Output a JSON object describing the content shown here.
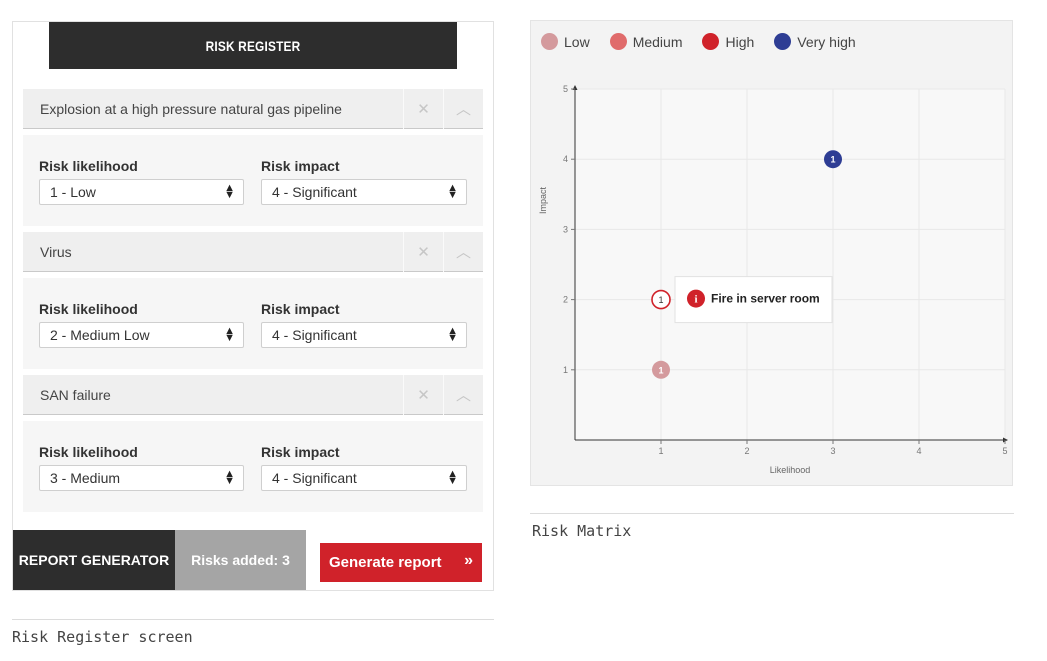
{
  "register": {
    "title": "RISK REGISTER",
    "likelihood_label": "Risk likelihood",
    "impact_label": "Risk impact",
    "risks": [
      {
        "title": "Explosion at a high pressure natural gas pipeline",
        "likelihood": "1 - Low",
        "impact": "4 - Significant"
      },
      {
        "title": "Virus",
        "likelihood": "2 - Medium Low",
        "impact": "4 - Significant"
      },
      {
        "title": "SAN failure",
        "likelihood": "3 - Medium",
        "impact": "4 - Significant"
      }
    ],
    "remove_icon": "close-icon",
    "collapse_icon": "chevron-up-icon"
  },
  "generator": {
    "label": "REPORT GENERATOR",
    "count": "Risks added: 3",
    "button": "Generate report",
    "button_icon": "double-chevron-right-icon"
  },
  "captions": {
    "register": "Risk Register screen",
    "matrix": "Risk Matrix"
  },
  "colors": {
    "dark": "#2d2d2d",
    "accent_red": "#d0222a",
    "low": "#d49a9d",
    "medium": "#e06b6b",
    "high": "#d0222a",
    "very_high": "#2e3d94"
  },
  "legend": [
    {
      "label": "Low",
      "color": "#d49a9d"
    },
    {
      "label": "Medium",
      "color": "#e06b6b"
    },
    {
      "label": "High",
      "color": "#d0222a"
    },
    {
      "label": "Very high",
      "color": "#2e3d94"
    }
  ],
  "chart_data": {
    "type": "scatter",
    "xlabel": "Likelihood",
    "ylabel": "Impact",
    "xlim": [
      0,
      5
    ],
    "ylim": [
      0,
      5
    ],
    "x_ticks": [
      "1",
      "2",
      "3",
      "4",
      "5"
    ],
    "y_ticks": [
      "1",
      "2",
      "3",
      "4",
      "5"
    ],
    "grid": true,
    "points": [
      {
        "x": 3,
        "y": 4,
        "label": "1",
        "level": "very_high",
        "color": "#2e3d94",
        "style": "filled"
      },
      {
        "x": 1,
        "y": 2,
        "label": "1",
        "level": "high",
        "color": "#d0222a",
        "style": "outline"
      },
      {
        "x": 1,
        "y": 1,
        "label": "1",
        "level": "low",
        "color": "#d49a9d",
        "style": "filled"
      }
    ],
    "tooltip": {
      "text": "Fire in server room",
      "icon": "info-icon",
      "point_index": 1
    }
  }
}
